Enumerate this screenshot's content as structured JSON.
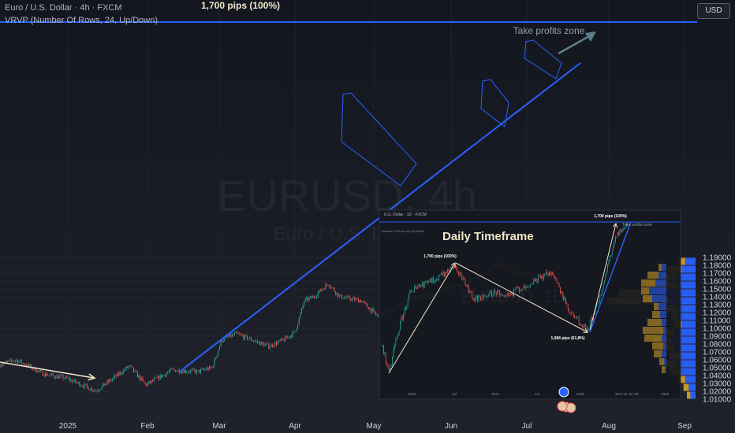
{
  "header": {
    "symbol": "Euro / U.S. Dollar · 4h · FXCM",
    "indicator": "VRVP (Number Of Rows, 24, Up/Down)"
  },
  "currency_button": "USD",
  "watermark": {
    "ticker": "EURUSD, 4h",
    "name": "Euro / U.S. Dollar"
  },
  "colors": {
    "background": "#171a23",
    "bull_candle": "#26a69a",
    "bear_candle": "#ef5350",
    "trendline": "#2962ff",
    "arrow_beige": "#f0e6c8",
    "take_profit_arrow": "#607d8b",
    "volume_up": "#2962ff",
    "volume_down": "#d9a424"
  },
  "annotations": {
    "top_pips": "1,700 pips (100%)",
    "take_profits": "Take profits zone",
    "inset_title": "Daily Timeframe"
  },
  "inset": {
    "header": "U.S. Dollar · 1D · FXCM",
    "vrvp": "Number Of Rows 24 Up/Down",
    "pips_left": "1,700 pips (100%)",
    "pips_top": "1,700 pips (100%)",
    "pips_retrace": "1,084 pips (61,8%)",
    "take_profits": "Take profits zone",
    "watermark": "EURUSD, 1D",
    "x_labels": [
      "2023",
      "Jul",
      "2024",
      "Jul",
      "2025",
      "Mon 21 Jul '25",
      "2026"
    ]
  },
  "chart_data": {
    "type": "candlestick",
    "timeframe": "4h",
    "x_axis_labels": [
      "2025",
      "Feb",
      "Mar",
      "Apr",
      "May",
      "Jun",
      "Jul",
      "Aug",
      "Sep"
    ],
    "y_axis_ticks": [
      1.01,
      1.02,
      1.03,
      1.04,
      1.05,
      1.06,
      1.07,
      1.08,
      1.09,
      1.1,
      1.11,
      1.12,
      1.13,
      1.14,
      1.15,
      1.16,
      1.17,
      1.18,
      1.19
    ],
    "ylim": [
      1.005,
      1.195
    ],
    "price_path": [
      {
        "date": "2024-12-01",
        "price": 1.052
      },
      {
        "date": "2024-12-10",
        "price": 1.06
      },
      {
        "date": "2024-12-22",
        "price": 1.042
      },
      {
        "date": "2025-01-01",
        "price": 1.036
      },
      {
        "date": "2025-01-10",
        "price": 1.024
      },
      {
        "date": "2025-01-13",
        "price": 1.021
      },
      {
        "date": "2025-01-20",
        "price": 1.036
      },
      {
        "date": "2025-01-27",
        "price": 1.052
      },
      {
        "date": "2025-02-03",
        "price": 1.028
      },
      {
        "date": "2025-02-14",
        "price": 1.047
      },
      {
        "date": "2025-02-25",
        "price": 1.045
      },
      {
        "date": "2025-03-03",
        "price": 1.05
      },
      {
        "date": "2025-03-07",
        "price": 1.085
      },
      {
        "date": "2025-03-13",
        "price": 1.093
      },
      {
        "date": "2025-03-20",
        "price": 1.085
      },
      {
        "date": "2025-03-27",
        "price": 1.077
      },
      {
        "date": "2025-04-02",
        "price": 1.085
      },
      {
        "date": "2025-04-07",
        "price": 1.095
      },
      {
        "date": "2025-04-11",
        "price": 1.135
      },
      {
        "date": "2025-04-15",
        "price": 1.14
      },
      {
        "date": "2025-04-21",
        "price": 1.157
      },
      {
        "date": "2025-04-26",
        "price": 1.14
      },
      {
        "date": "2025-05-05",
        "price": 1.135
      },
      {
        "date": "2025-05-12",
        "price": 1.115
      },
      {
        "date": "2025-05-19",
        "price": 1.125
      },
      {
        "date": "2025-05-26",
        "price": 1.14
      },
      {
        "date": "2025-06-02",
        "price": 1.14
      },
      {
        "date": "2025-06-09",
        "price": 1.15
      },
      {
        "date": "2025-06-16",
        "price": 1.155
      },
      {
        "date": "2025-06-23",
        "price": 1.165
      },
      {
        "date": "2025-06-27",
        "price": 1.17
      },
      {
        "date": "2025-07-01",
        "price": 1.182
      },
      {
        "date": "2025-07-08",
        "price": 1.172
      },
      {
        "date": "2025-07-15",
        "price": 1.167
      },
      {
        "date": "2025-07-17",
        "price": 1.165
      }
    ],
    "trendline": [
      {
        "date": "2025-02-11",
        "price": 1.024
      },
      {
        "date": "2025-07-23",
        "price": 1.174
      }
    ],
    "target_level": {
      "price": 1.193,
      "label": "1,700 pips (100%)"
    },
    "volume_profile": {
      "rows": [
        1.015,
        1.025,
        1.035,
        1.045,
        1.055,
        1.065,
        1.075,
        1.085,
        1.095,
        1.105,
        1.115,
        1.125,
        1.135,
        1.145,
        1.155,
        1.165,
        1.175,
        1.185
      ],
      "up": [
        3,
        4,
        6,
        9,
        11,
        9,
        12,
        14,
        12,
        8,
        10,
        11,
        16,
        28,
        10,
        11,
        8,
        6
      ],
      "down": [
        2,
        3,
        4,
        6,
        7,
        6,
        9,
        10,
        8,
        5,
        4,
        6,
        35,
        16,
        18,
        8,
        8,
        4
      ]
    }
  }
}
